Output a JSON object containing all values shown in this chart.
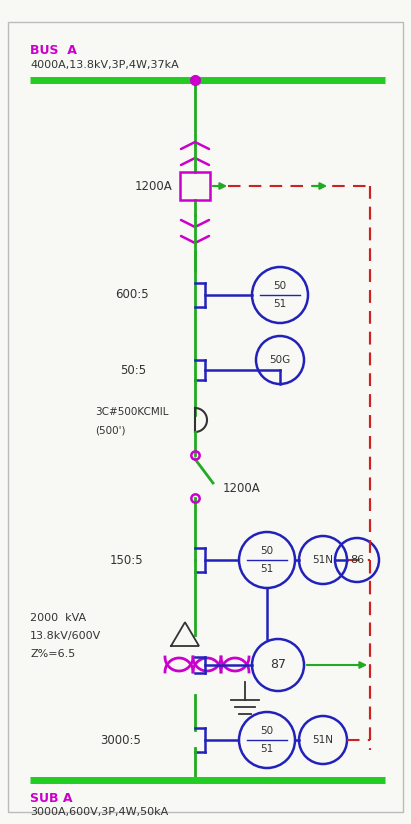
{
  "bg_color": "#f8f8f4",
  "green_bus_color": "#22cc22",
  "magenta_color": "#cc00cc",
  "green_line_color": "#22aa22",
  "blue_color": "#2222bb",
  "red_dashed_color": "#cc2222",
  "black_color": "#333333",
  "bus_a_label": "BUS  A",
  "bus_a_spec": "4000A,13.8kV,3P,4W,37kA",
  "sub_a_label": "SUB A",
  "sub_a_spec": "3000A,600V,3P,4W,50kA",
  "label_1200A_top": "1200A",
  "label_600_5": "600:5",
  "label_50_5": "50:5",
  "label_cable": "3C#500KCMIL",
  "label_cable2": "(500')",
  "label_1200A_mid": "1200A",
  "label_150_5": "150:5",
  "label_2000kva": "2000  kVA",
  "label_voltage": "13.8kV/600V",
  "label_z": "Z%=6.5",
  "label_3000_5": "3000:5"
}
